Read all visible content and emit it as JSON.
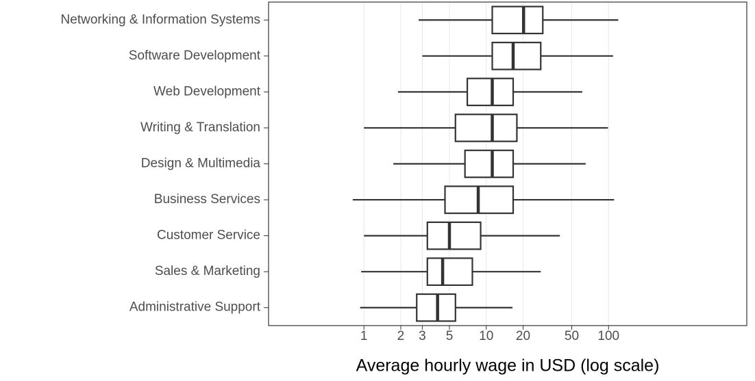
{
  "chart_data": {
    "type": "boxplot",
    "orientation": "horizontal",
    "x_label": "Average hourly wage in USD (log scale)",
    "categories": [
      "Networking & Information Systems",
      "Software Development",
      "Web Development",
      "Writing & Translation",
      "Design & Multimedia",
      "Business Services",
      "Customer Service",
      "Sales & Marketing",
      "Administrative Support"
    ],
    "min": [
      2.8,
      3.0,
      1.9,
      1.0,
      1.74,
      0.81,
      1.0,
      0.95,
      0.93
    ],
    "q1": [
      11.2,
      11.2,
      7.0,
      5.6,
      6.7,
      4.6,
      3.3,
      3.3,
      2.7
    ],
    "median": [
      20.2,
      16.6,
      11.2,
      11.2,
      11.2,
      8.6,
      5.0,
      4.4,
      4.0
    ],
    "q3": [
      29,
      27.9,
      16.6,
      17.8,
      16.6,
      16.6,
      9.0,
      7.7,
      5.6
    ],
    "max": [
      120,
      109,
      61,
      99,
      65,
      111,
      40,
      27.9,
      16.4
    ],
    "color": "#333333",
    "fill": "#ffffff",
    "x_log": true,
    "xlim": [
      0.166,
      1350
    ],
    "xticks": [
      1,
      2,
      3,
      5,
      10,
      20,
      50,
      100
    ],
    "grid": true
  }
}
